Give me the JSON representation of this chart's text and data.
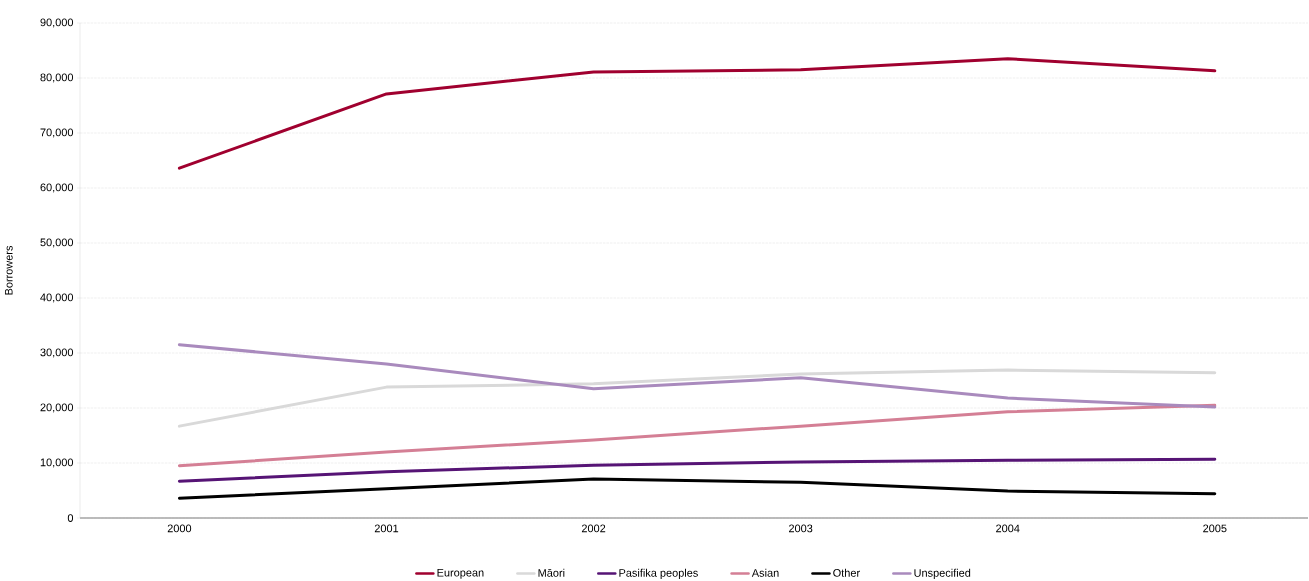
{
  "chart_data": {
    "type": "line",
    "ylabel": "Borrowers",
    "categories": [
      "2000",
      "2001",
      "2002",
      "2003",
      "2004",
      "2005"
    ],
    "series": [
      {
        "name": "European",
        "color": "#a0002f",
        "values": [
          63600,
          77100,
          81100,
          81500,
          83500,
          81300
        ]
      },
      {
        "name": "Māori",
        "color": "#d9d9d9",
        "values": [
          16700,
          23800,
          24400,
          26200,
          26900,
          26400
        ]
      },
      {
        "name": "Pasifika peoples",
        "color": "#561475",
        "values": [
          6700,
          8400,
          9600,
          10200,
          10500,
          10700
        ]
      },
      {
        "name": "Asian",
        "color": "#d47f95",
        "values": [
          9500,
          12000,
          14200,
          16700,
          19300,
          20500
        ]
      },
      {
        "name": "Other",
        "color": "#000000",
        "values": [
          3600,
          5300,
          7100,
          6500,
          4900,
          4400
        ]
      },
      {
        "name": "Unspecified",
        "color": "#a98abd",
        "values": [
          31500,
          28000,
          23500,
          25500,
          21800,
          20200
        ]
      }
    ],
    "ylim": [
      0,
      90000
    ],
    "yticks": [
      {
        "value": 0,
        "label": "0"
      },
      {
        "value": 10000,
        "label": "10,000"
      },
      {
        "value": 20000,
        "label": "20,000"
      },
      {
        "value": 30000,
        "label": "30,000"
      },
      {
        "value": 40000,
        "label": "40,000"
      },
      {
        "value": 50000,
        "label": "50,000"
      },
      {
        "value": 60000,
        "label": "60,000"
      },
      {
        "value": 70000,
        "label": "70,000"
      },
      {
        "value": 80000,
        "label": "80,000"
      },
      {
        "value": 90000,
        "label": "90,000"
      }
    ],
    "grid": "y",
    "legend": "bottom",
    "marker": "none",
    "line_style": "solid"
  }
}
